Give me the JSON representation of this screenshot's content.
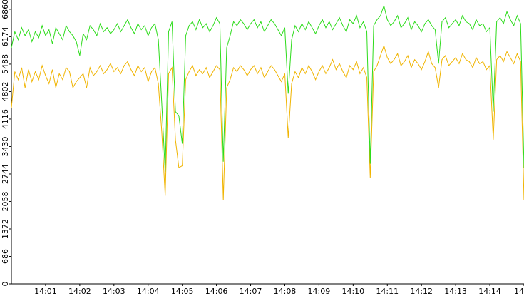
{
  "chart_data": {
    "type": "line",
    "categories": [
      null,
      null,
      null,
      null,
      null,
      null,
      null,
      null,
      null,
      null,
      "14:01",
      null,
      null,
      null,
      null,
      null,
      null,
      null,
      null,
      null,
      "14:02",
      null,
      null,
      null,
      null,
      null,
      null,
      null,
      null,
      null,
      "14:03",
      null,
      null,
      null,
      null,
      null,
      null,
      null,
      null,
      null,
      "14:04",
      null,
      null,
      null,
      null,
      null,
      null,
      null,
      null,
      null,
      "14:05",
      null,
      null,
      null,
      null,
      null,
      null,
      null,
      null,
      null,
      "14:06",
      null,
      null,
      null,
      null,
      null,
      null,
      null,
      null,
      null,
      "14:07",
      null,
      null,
      null,
      null,
      null,
      null,
      null,
      null,
      null,
      "14:08",
      null,
      null,
      null,
      null,
      null,
      null,
      null,
      null,
      null,
      "14:09",
      null,
      null,
      null,
      null,
      null,
      null,
      null,
      null,
      null,
      "14:10",
      null,
      null,
      null,
      null,
      null,
      null,
      null,
      null,
      null,
      "14:11",
      null,
      null,
      null,
      null,
      null,
      null,
      null,
      null,
      null,
      "14:12",
      null,
      null,
      null,
      null,
      null,
      null,
      null,
      null,
      null,
      "14:13",
      null,
      null,
      null,
      null,
      null,
      null,
      null,
      null,
      null,
      "14:14",
      null,
      null,
      null,
      null,
      null,
      null,
      null,
      null,
      null,
      "14"
    ],
    "series": [
      {
        "color": "#2edc1c",
        "values": [
          5900,
          6300,
          6100,
          6400,
          6200,
          6350,
          6050,
          6300,
          6150,
          6450,
          6200,
          6350,
          6000,
          6400,
          6250,
          6100,
          6450,
          6300,
          6200,
          6050,
          5700,
          6250,
          6100,
          6450,
          6350,
          6200,
          6500,
          6300,
          6400,
          6250,
          6350,
          6500,
          6300,
          6450,
          6600,
          6400,
          6250,
          6500,
          6350,
          6450,
          6200,
          6400,
          6500,
          6100,
          4500,
          2800,
          6300,
          6550,
          4300,
          4200,
          3500,
          6200,
          6450,
          6550,
          6350,
          6600,
          6400,
          6500,
          6300,
          6450,
          6650,
          6500,
          3050,
          5900,
          6200,
          6550,
          6450,
          6600,
          6500,
          6350,
          6500,
          6600,
          6400,
          6550,
          6300,
          6450,
          6600,
          6500,
          6350,
          6200,
          6400,
          4750,
          6100,
          6450,
          6300,
          6500,
          6350,
          6550,
          6400,
          6250,
          6450,
          6600,
          6400,
          6550,
          6350,
          6500,
          6650,
          6450,
          6300,
          6600,
          6500,
          6700,
          6400,
          6550,
          6300,
          3000,
          6450,
          6600,
          6700,
          6950,
          6600,
          6450,
          6550,
          6700,
          6400,
          6500,
          6650,
          6350,
          6550,
          6450,
          6300,
          6500,
          6600,
          6450,
          6350,
          5500,
          6550,
          6650,
          6400,
          6500,
          6600,
          6450,
          6700,
          6550,
          6500,
          6350,
          6600,
          6450,
          6500,
          6300,
          6400,
          4300,
          6550,
          6650,
          6500,
          6800,
          6600,
          6450,
          6700,
          6500,
          2900
        ]
      },
      {
        "color": "#f0b400",
        "values": [
          4400,
          5300,
          5100,
          5400,
          4900,
          5350,
          5050,
          5300,
          5100,
          5450,
          5200,
          5000,
          5350,
          4900,
          5250,
          5100,
          5400,
          5300,
          4900,
          5050,
          5150,
          5250,
          4900,
          5400,
          5200,
          5300,
          5450,
          5250,
          5350,
          5500,
          5300,
          5400,
          5250,
          5450,
          5550,
          5350,
          5200,
          5450,
          5300,
          5400,
          5050,
          5300,
          5400,
          5000,
          3800,
          2200,
          5250,
          5400,
          3600,
          2900,
          2950,
          5100,
          5300,
          5450,
          5200,
          5350,
          5250,
          5400,
          5150,
          5300,
          5450,
          5350,
          2100,
          4900,
          5100,
          5400,
          5300,
          5450,
          5350,
          5200,
          5350,
          5450,
          5250,
          5400,
          5150,
          5300,
          5450,
          5350,
          5200,
          5050,
          5250,
          3650,
          5000,
          5300,
          5150,
          5400,
          5250,
          5450,
          5300,
          5100,
          5300,
          5450,
          5250,
          5400,
          5600,
          5350,
          5500,
          5300,
          5150,
          5450,
          5350,
          5550,
          5250,
          5400,
          5150,
          2650,
          5300,
          5450,
          5700,
          5950,
          5650,
          5500,
          5600,
          5750,
          5450,
          5550,
          5700,
          5400,
          5600,
          5500,
          5350,
          5550,
          5800,
          5500,
          5400,
          4900,
          5600,
          5700,
          5450,
          5550,
          5650,
          5500,
          5750,
          5600,
          5550,
          5400,
          5650,
          5500,
          5550,
          5350,
          5450,
          3600,
          5600,
          5700,
          5550,
          5800,
          5650,
          5500,
          5750,
          5550,
          2100
        ]
      }
    ],
    "ylim": [
      0,
      7090
    ],
    "yticks": [
      0,
      686,
      1372,
      2058,
      2744,
      3430,
      4116,
      4802,
      5488,
      6174,
      6860
    ]
  }
}
